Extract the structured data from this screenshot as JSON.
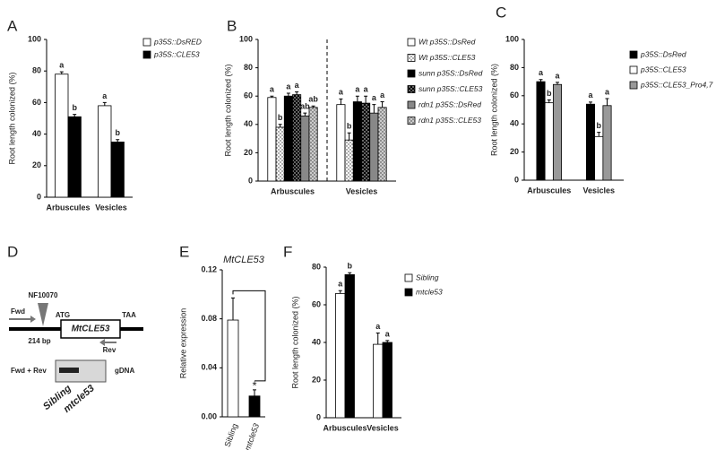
{
  "chart_data": [
    {
      "type": "bar",
      "panel": "A",
      "ylabel": "Root  length  colonized  (%)",
      "categories": [
        "Arbuscules",
        "Vesicles"
      ],
      "ylim": [
        0,
        100
      ],
      "yticks": [
        0,
        20,
        40,
        60,
        80,
        100
      ],
      "series": [
        {
          "name": "p35S::DsRED",
          "color": "#ffffff",
          "values": [
            78,
            58
          ],
          "errors": [
            1.5,
            2
          ],
          "letters": [
            "a",
            "a"
          ]
        },
        {
          "name": "p35S::CLE53",
          "color": "#000000",
          "values": [
            51,
            35
          ],
          "errors": [
            1.5,
            1.5
          ],
          "letters": [
            "b",
            "b"
          ]
        }
      ]
    },
    {
      "type": "bar",
      "panel": "B",
      "ylabel": "Root length colonized (%)",
      "categories": [
        "Arbuscules",
        "Vesicles"
      ],
      "ylim": [
        0,
        100
      ],
      "yticks": [
        0,
        20,
        40,
        60,
        80,
        100
      ],
      "series": [
        {
          "name": "Wt  p35S::DsRed",
          "color": "#ffffff",
          "values": [
            59,
            54
          ],
          "errors": [
            1,
            4
          ],
          "letters": [
            "a",
            "a"
          ]
        },
        {
          "name": "Wt  p35S::CLE53",
          "color": "#ffffff",
          "pattern": "dots",
          "values": [
            38,
            29
          ],
          "errors": [
            2,
            5
          ],
          "letters": [
            "b",
            "b"
          ]
        },
        {
          "name": "sunn  p35S::DsRed",
          "color": "#000000",
          "values": [
            60,
            56
          ],
          "errors": [
            2,
            4
          ],
          "letters": [
            "a",
            "a"
          ]
        },
        {
          "name": "sunn  p35S::CLE53",
          "color": "#000000",
          "pattern": "dots",
          "values": [
            61,
            55
          ],
          "errors": [
            2,
            5
          ],
          "letters": [
            "a",
            "a"
          ]
        },
        {
          "name": "rdn1  p35S::DsRed",
          "color": "#888888",
          "values": [
            46,
            48
          ],
          "errors": [
            2,
            6
          ],
          "letters": [
            "ab",
            "a"
          ]
        },
        {
          "name": "rdn1  p35S::CLE53",
          "color": "#cccccc",
          "pattern": "dots",
          "values": [
            52,
            52
          ],
          "errors": [
            1,
            4
          ],
          "letters": [
            "ab",
            "a"
          ]
        }
      ]
    },
    {
      "type": "bar",
      "panel": "C",
      "ylabel": "Root length colonized (%)",
      "categories": [
        "Arbuscules",
        "Vesicles"
      ],
      "ylim": [
        0,
        100
      ],
      "yticks": [
        0,
        20,
        40,
        60,
        80,
        100
      ],
      "series": [
        {
          "name": "p35S::DsRed",
          "color": "#000000",
          "values": [
            70,
            54
          ],
          "errors": [
            1.5,
            1.5
          ],
          "letters": [
            "a",
            "a"
          ]
        },
        {
          "name": "p35S::CLE53",
          "color": "#ffffff",
          "values": [
            55,
            31
          ],
          "errors": [
            2,
            3
          ],
          "letters": [
            "b",
            "b"
          ]
        },
        {
          "name": "p35S::CLE53_Pro4,7",
          "color": "#999999",
          "values": [
            68,
            53
          ],
          "errors": [
            1.5,
            5
          ],
          "letters": [
            "a",
            "a"
          ]
        }
      ]
    },
    {
      "type": "bar",
      "panel": "E",
      "title": "MtCLE53",
      "ylabel": "Relative expression",
      "categories": [
        "Sibling",
        "mtcle53"
      ],
      "ylim": [
        0,
        0.12
      ],
      "yticks": [
        {
          "value": 0,
          "label": "0.00"
        },
        0.04,
        0.08,
        0.12
      ],
      "annotation": "*",
      "series": [
        {
          "name": null,
          "colors": [
            "#ffffff",
            "#000000"
          ],
          "values": [
            0.079,
            0.017
          ],
          "errors": [
            0.018,
            0.005
          ]
        }
      ]
    },
    {
      "type": "bar",
      "panel": "F",
      "ylabel": "Root length colonized (%)",
      "categories": [
        "Arbuscules",
        "Vesicles"
      ],
      "ylim": [
        0,
        80
      ],
      "yticks": [
        0,
        20,
        40,
        60,
        80
      ],
      "series": [
        {
          "name": "Sibling",
          "color": "#ffffff",
          "values": [
            66,
            39
          ],
          "errors": [
            1.5,
            6
          ],
          "letters": [
            "a",
            "a"
          ]
        },
        {
          "name": "mtcle53",
          "color": "#000000",
          "values": [
            76,
            40
          ],
          "errors": [
            1,
            1
          ],
          "letters": [
            "b",
            "a"
          ]
        }
      ]
    }
  ],
  "diagram": {
    "panel": "D",
    "insertion": "NF10070",
    "fwd": "Fwd",
    "start": "ATG",
    "gene": "MtCLE53",
    "stop": "TAA",
    "distance": "214 bp",
    "rev": "Rev",
    "primers": "Fwd + Rev",
    "template": "gDNA",
    "lanes": [
      "Sibling",
      "mtcle53"
    ]
  }
}
